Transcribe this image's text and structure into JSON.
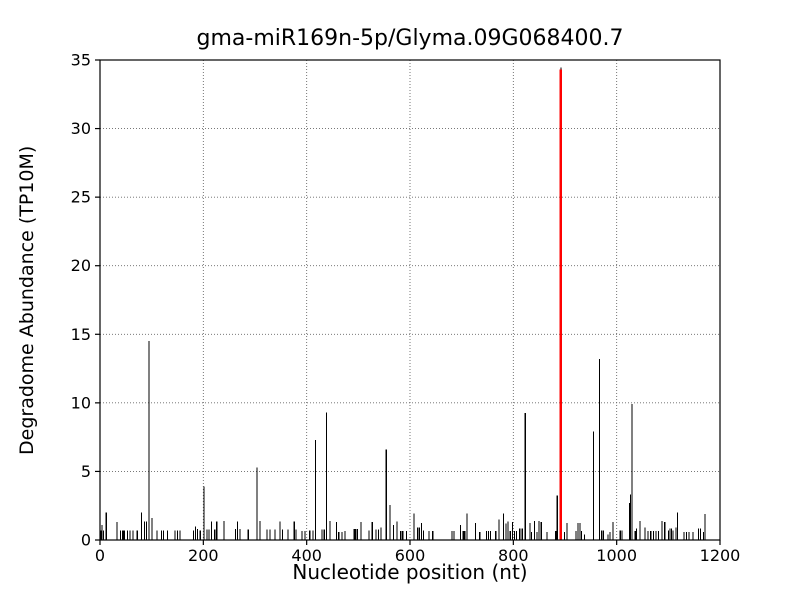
{
  "chart_data": {
    "type": "bar",
    "subtype": "stem-degradome-plot",
    "title": "gma-miR169n-5p/Glyma.09G068400.7",
    "xlabel": "Nucleotide position (nt)",
    "ylabel": "Degradome Abundance (TP10M)",
    "xlim": [
      0,
      1200
    ],
    "ylim": [
      0,
      35
    ],
    "xticks": [
      0,
      200,
      400,
      600,
      800,
      1000,
      1200
    ],
    "yticks": [
      0,
      5,
      10,
      15,
      20,
      25,
      30,
      35
    ],
    "grid": true,
    "legend": "none",
    "colors": {
      "stem": "#000000",
      "highlight": "#ff0000",
      "axis": "#000000",
      "grid": "#666666",
      "background": "#ffffff"
    },
    "series": [
      {
        "name": "degradome-abundance",
        "color": "#000000",
        "points": [
          [
            2,
            0.7
          ],
          [
            4,
            1.1
          ],
          [
            7,
            0.7
          ],
          [
            12,
            2.0
          ],
          [
            33,
            1.3
          ],
          [
            40,
            0.7
          ],
          [
            44,
            0.7
          ],
          [
            47,
            0.7
          ],
          [
            53,
            0.7
          ],
          [
            58,
            0.7
          ],
          [
            64,
            0.7
          ],
          [
            72,
            0.7
          ],
          [
            80,
            2.0
          ],
          [
            86,
            1.35
          ],
          [
            90,
            1.35
          ],
          [
            95,
            14.5
          ],
          [
            101,
            1.6
          ],
          [
            110,
            0.7
          ],
          [
            119,
            0.7
          ],
          [
            123,
            0.7
          ],
          [
            131,
            0.7
          ],
          [
            145,
            0.7
          ],
          [
            150,
            0.7
          ],
          [
            155,
            0.7
          ],
          [
            181,
            0.7
          ],
          [
            185,
            1.0
          ],
          [
            189,
            0.8
          ],
          [
            194,
            0.7
          ],
          [
            201,
            3.9
          ],
          [
            207,
            0.75
          ],
          [
            211,
            0.75
          ],
          [
            216,
            1.35
          ],
          [
            222,
            0.75
          ],
          [
            226,
            1.35
          ],
          [
            240,
            1.4
          ],
          [
            262,
            0.8
          ],
          [
            266,
            1.35
          ],
          [
            271,
            0.8
          ],
          [
            287,
            0.75
          ],
          [
            304,
            5.3
          ],
          [
            310,
            1.4
          ],
          [
            323,
            0.75
          ],
          [
            329,
            0.75
          ],
          [
            339,
            0.75
          ],
          [
            348,
            1.35
          ],
          [
            353,
            0.75
          ],
          [
            364,
            0.75
          ],
          [
            376,
            1.35
          ],
          [
            379,
            0.75
          ],
          [
            391,
            0.65
          ],
          [
            397,
            0.65
          ],
          [
            406,
            0.7
          ],
          [
            412,
            0.7
          ],
          [
            417,
            7.3
          ],
          [
            430,
            0.75
          ],
          [
            434,
            0.75
          ],
          [
            438,
            9.3
          ],
          [
            445,
            1.4
          ],
          [
            458,
            1.3
          ],
          [
            462,
            0.6
          ],
          [
            468,
            0.6
          ],
          [
            474,
            0.65
          ],
          [
            492,
            0.8
          ],
          [
            495,
            0.8
          ],
          [
            498,
            0.8
          ],
          [
            505,
            1.3
          ],
          [
            521,
            0.7
          ],
          [
            527,
            1.3
          ],
          [
            534,
            0.75
          ],
          [
            539,
            0.75
          ],
          [
            544,
            0.9
          ],
          [
            554,
            6.6
          ],
          [
            561,
            2.55
          ],
          [
            568,
            1.1
          ],
          [
            575,
            1.35
          ],
          [
            582,
            0.65
          ],
          [
            586,
            0.65
          ],
          [
            593,
            0.65
          ],
          [
            608,
            1.95
          ],
          [
            615,
            0.9
          ],
          [
            618,
            0.9
          ],
          [
            622,
            1.25
          ],
          [
            626,
            0.7
          ],
          [
            637,
            0.65
          ],
          [
            644,
            0.65
          ],
          [
            681,
            0.65
          ],
          [
            685,
            0.65
          ],
          [
            698,
            1.1
          ],
          [
            703,
            0.65
          ],
          [
            706,
            0.65
          ],
          [
            710,
            1.95
          ],
          [
            727,
            1.25
          ],
          [
            735,
            0.6
          ],
          [
            748,
            0.65
          ],
          [
            752,
            0.65
          ],
          [
            756,
            0.65
          ],
          [
            766,
            0.65
          ],
          [
            772,
            1.5
          ],
          [
            781,
            1.95
          ],
          [
            786,
            1.2
          ],
          [
            790,
            1.35
          ],
          [
            794,
            0.65
          ],
          [
            798,
            1.3
          ],
          [
            802,
            0.65
          ],
          [
            806,
            0.65
          ],
          [
            812,
            0.85
          ],
          [
            815,
            0.85
          ],
          [
            818,
            0.85
          ],
          [
            823,
            9.25
          ],
          [
            832,
            1.25
          ],
          [
            835,
            0.6
          ],
          [
            841,
            1.4
          ],
          [
            846,
            0.6
          ],
          [
            850,
            1.4
          ],
          [
            854,
            1.3
          ],
          [
            865,
            0.6
          ],
          [
            882,
            0.65
          ],
          [
            885,
            3.25
          ],
          [
            892,
            34.45
          ],
          [
            899,
            0.6
          ],
          [
            904,
            1.25
          ],
          [
            921,
            0.65
          ],
          [
            925,
            1.25
          ],
          [
            929,
            1.25
          ],
          [
            932,
            0.65
          ],
          [
            938,
            0.4
          ],
          [
            955,
            7.9
          ],
          [
            967,
            13.2
          ],
          [
            971,
            0.7
          ],
          [
            974,
            0.7
          ],
          [
            983,
            0.4
          ],
          [
            987,
            0.6
          ],
          [
            993,
            1.3
          ],
          [
            1007,
            0.7
          ],
          [
            1010,
            0.7
          ],
          [
            1025,
            2.7
          ],
          [
            1027,
            3.3
          ],
          [
            1030,
            9.9
          ],
          [
            1036,
            0.65
          ],
          [
            1038,
            0.85
          ],
          [
            1045,
            1.4
          ],
          [
            1055,
            0.9
          ],
          [
            1061,
            0.65
          ],
          [
            1066,
            0.65
          ],
          [
            1071,
            0.65
          ],
          [
            1076,
            0.65
          ],
          [
            1081,
            0.65
          ],
          [
            1088,
            1.4
          ],
          [
            1093,
            1.3
          ],
          [
            1100,
            0.7
          ],
          [
            1103,
            0.85
          ],
          [
            1106,
            0.85
          ],
          [
            1109,
            0.7
          ],
          [
            1115,
            0.9
          ],
          [
            1118,
            2.0
          ],
          [
            1130,
            0.6
          ],
          [
            1135,
            0.6
          ],
          [
            1140,
            0.6
          ],
          [
            1148,
            0.6
          ],
          [
            1158,
            0.85
          ],
          [
            1162,
            0.85
          ],
          [
            1168,
            0.6
          ],
          [
            1171,
            1.9
          ]
        ]
      },
      {
        "name": "mirna-cleavage-site-highlight",
        "color": "#ff0000",
        "points": [
          [
            892,
            34.3
          ]
        ]
      }
    ]
  }
}
